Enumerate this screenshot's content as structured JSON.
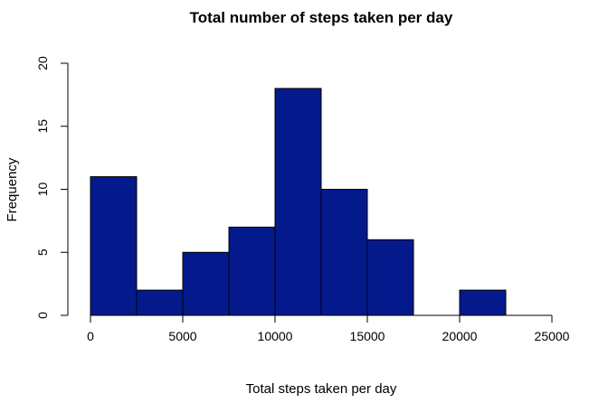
{
  "chart_data": {
    "type": "bar",
    "subtype": "histogram",
    "title": "Total number of steps taken per day",
    "xlabel": "Total steps taken per day",
    "ylabel": "Frequency",
    "bin_edges": [
      0,
      2500,
      5000,
      7500,
      10000,
      12500,
      15000,
      17500,
      20000,
      22500
    ],
    "values": [
      11,
      2,
      5,
      7,
      18,
      10,
      6,
      0,
      2
    ],
    "xlim": [
      0,
      25000
    ],
    "ylim": [
      0,
      20
    ],
    "x_ticks": [
      0,
      5000,
      10000,
      15000,
      20000,
      25000
    ],
    "y_ticks": [
      0,
      5,
      10,
      15,
      20
    ],
    "bar_color": "#041A8C",
    "grid": false
  }
}
